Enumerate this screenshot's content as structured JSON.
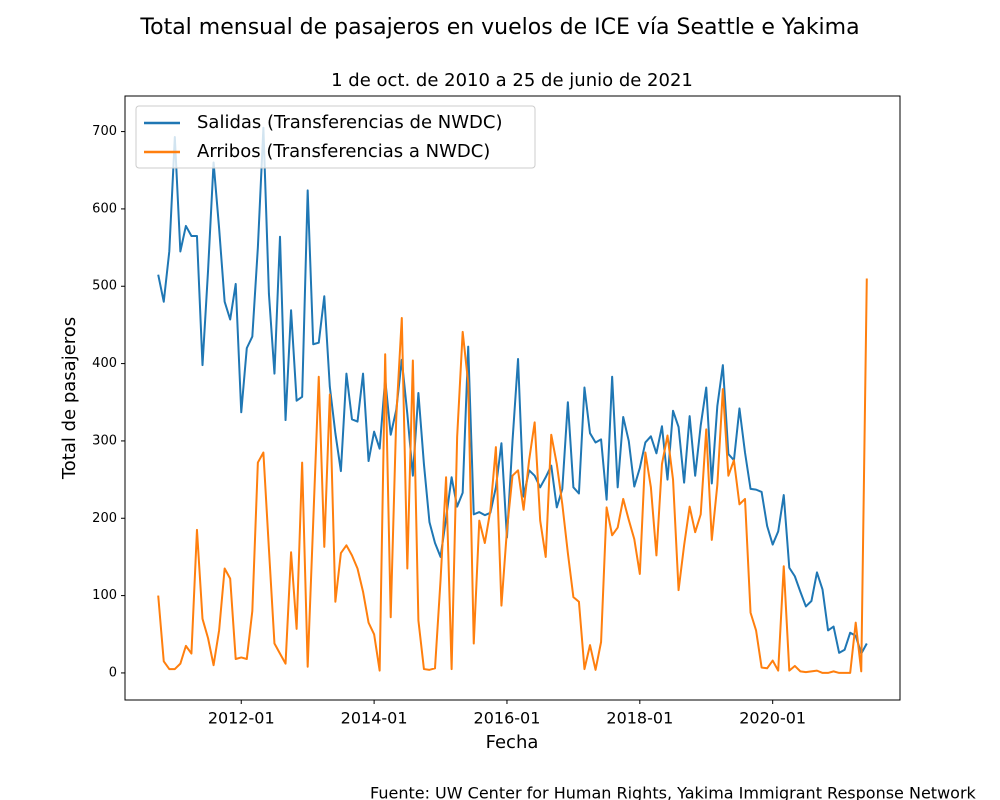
{
  "chart_data": {
    "type": "line",
    "title": "Total mensual de pasajeros en vuelos de ICE vía Seattle e Yakima",
    "subtitle": "1 de oct. de 2010 a 25 de junio de 2021",
    "x_label": "Fecha",
    "y_label": "Total de pasajeros",
    "source": "Fuente: UW Center for Human Rights, Yakima Immigrant Response Network",
    "legend": "upper left",
    "x": [
      "2010-10",
      "2010-11",
      "2010-12",
      "2011-01",
      "2011-02",
      "2011-03",
      "2011-04",
      "2011-05",
      "2011-06",
      "2011-07",
      "2011-08",
      "2011-09",
      "2011-10",
      "2011-11",
      "2011-12",
      "2012-01",
      "2012-02",
      "2012-03",
      "2012-04",
      "2012-05",
      "2012-06",
      "2012-07",
      "2012-08",
      "2012-09",
      "2012-10",
      "2012-11",
      "2012-12",
      "2013-01",
      "2013-02",
      "2013-03",
      "2013-04",
      "2013-05",
      "2013-06",
      "2013-07",
      "2013-08",
      "2013-09",
      "2013-10",
      "2013-11",
      "2013-12",
      "2014-01",
      "2014-02",
      "2014-03",
      "2014-04",
      "2014-05",
      "2014-06",
      "2014-07",
      "2014-08",
      "2014-09",
      "2014-10",
      "2014-11",
      "2014-12",
      "2015-01",
      "2015-02",
      "2015-03",
      "2015-04",
      "2015-05",
      "2015-06",
      "2015-07",
      "2015-08",
      "2015-09",
      "2015-10",
      "2015-11",
      "2015-12",
      "2016-01",
      "2016-02",
      "2016-03",
      "2016-04",
      "2016-05",
      "2016-06",
      "2016-07",
      "2016-08",
      "2016-09",
      "2016-10",
      "2016-11",
      "2016-12",
      "2017-01",
      "2017-02",
      "2017-03",
      "2017-04",
      "2017-05",
      "2017-06",
      "2017-07",
      "2017-08",
      "2017-09",
      "2017-10",
      "2017-11",
      "2017-12",
      "2018-01",
      "2018-02",
      "2018-03",
      "2018-04",
      "2018-05",
      "2018-06",
      "2018-07",
      "2018-08",
      "2018-09",
      "2018-10",
      "2018-11",
      "2018-12",
      "2019-01",
      "2019-02",
      "2019-03",
      "2019-04",
      "2019-05",
      "2019-06",
      "2019-07",
      "2019-08",
      "2019-09",
      "2019-10",
      "2019-11",
      "2019-12",
      "2020-01",
      "2020-02",
      "2020-03",
      "2020-04",
      "2020-05",
      "2020-06",
      "2020-07",
      "2020-08",
      "2020-09",
      "2020-10",
      "2020-11",
      "2020-12",
      "2021-01",
      "2021-02",
      "2021-03",
      "2021-04",
      "2021-05",
      "2021-06"
    ],
    "series": [
      {
        "name": "Salidas (Transferencias de NWDC)",
        "color": "#1f77b4",
        "values": [
          515,
          480,
          545,
          693,
          545,
          578,
          565,
          565,
          398,
          520,
          660,
          575,
          480,
          457,
          503,
          337,
          420,
          435,
          550,
          705,
          490,
          387,
          564,
          327,
          469,
          352,
          357,
          624,
          425,
          427,
          487,
          370,
          310,
          261,
          387,
          328,
          325,
          387,
          274,
          312,
          290,
          380,
          308,
          340,
          405,
          335,
          255,
          362,
          270,
          195,
          168,
          150,
          200,
          253,
          215,
          233,
          422,
          205,
          208,
          204,
          207,
          240,
          297,
          175,
          300,
          406,
          228,
          262,
          255,
          240,
          253,
          268,
          214,
          238,
          350,
          240,
          232,
          369,
          310,
          298,
          302,
          224,
          383,
          240,
          331,
          300,
          241,
          265,
          298,
          306,
          284,
          319,
          250,
          339,
          318,
          246,
          332,
          255,
          320,
          369,
          245,
          345,
          398,
          283,
          275,
          342,
          285,
          238,
          237,
          234,
          190,
          166,
          183,
          230,
          136,
          125,
          105,
          86,
          93,
          130,
          108,
          55,
          60,
          26,
          30,
          52,
          48,
          25,
          38
        ]
      },
      {
        "name": "Arribos (Transferencias a NWDC)",
        "color": "#ff7f0e",
        "values": [
          100,
          15,
          5,
          5,
          12,
          35,
          25,
          185,
          70,
          45,
          10,
          55,
          135,
          122,
          18,
          20,
          18,
          80,
          272,
          285,
          160,
          38,
          25,
          12,
          156,
          57,
          272,
          8,
          195,
          383,
          163,
          360,
          92,
          155,
          165,
          152,
          135,
          105,
          65,
          50,
          3,
          412,
          72,
          330,
          459,
          135,
          404,
          68,
          5,
          4,
          6,
          120,
          253,
          5,
          305,
          441,
          375,
          38,
          197,
          168,
          210,
          292,
          87,
          185,
          255,
          262,
          211,
          275,
          324,
          197,
          150,
          308,
          270,
          218,
          155,
          98,
          92,
          5,
          36,
          4,
          40,
          214,
          178,
          188,
          225,
          198,
          173,
          128,
          285,
          240,
          152,
          270,
          307,
          250,
          107,
          165,
          215,
          182,
          205,
          315,
          172,
          243,
          367,
          255,
          275,
          218,
          225,
          78,
          55,
          7,
          6,
          16,
          3,
          138,
          3,
          9,
          2,
          1,
          2,
          3,
          0,
          0,
          2,
          0,
          0,
          0,
          65,
          2,
          510
        ]
      }
    ],
    "xlim": [
      "2010-04",
      "2021-12"
    ],
    "xticks": [
      "2012-01",
      "2014-01",
      "2016-01",
      "2018-01",
      "2020-01"
    ],
    "ylim": [
      -35,
      746
    ],
    "yticks": [
      0,
      100,
      200,
      300,
      400,
      500,
      600,
      700
    ]
  }
}
